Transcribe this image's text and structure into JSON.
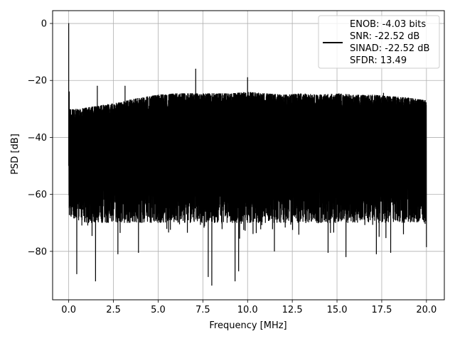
{
  "chart_data": {
    "type": "line",
    "title": "",
    "xlabel": "Frequency [MHz]",
    "ylabel": "PSD [dB]",
    "xlim": [
      -0.9,
      21.0
    ],
    "ylim": [
      -97,
      4.5
    ],
    "xticks": [
      0.0,
      2.5,
      5.0,
      7.5,
      10.0,
      12.5,
      15.0,
      17.5,
      20.0
    ],
    "xtick_labels": [
      "0.0",
      "2.5",
      "5.0",
      "7.5",
      "10.0",
      "12.5",
      "15.0",
      "17.5",
      "20.0"
    ],
    "yticks": [
      0,
      -20,
      -40,
      -60,
      -80
    ],
    "ytick_labels": [
      "0",
      "−20",
      "−40",
      "−60",
      "−80"
    ],
    "grid": true,
    "legend_position": "top-right",
    "series_color": "#000000",
    "legend": {
      "lines": [
        "ENOB: -4.03 bits",
        "SNR: -22.52 dB",
        "SINAD: -22.52 dB",
        "SFDR: 13.49"
      ]
    },
    "series": [
      {
        "upper_envelope": {
          "x": [
            0.0,
            0.1,
            0.5,
            1.0,
            1.5,
            2.0,
            2.5,
            3.0,
            3.5,
            4.0,
            5.0,
            6.0,
            7.0,
            8.0,
            9.0,
            10.0,
            11.0,
            12.0,
            13.0,
            14.0,
            15.0,
            16.0,
            17.0,
            18.0,
            19.0,
            20.0
          ],
          "y": [
            -30,
            -30,
            -30,
            -29.5,
            -29,
            -28.5,
            -28,
            -27.5,
            -26.5,
            -26,
            -25,
            -24.5,
            -24.5,
            -24.5,
            -24.5,
            -24,
            -24.5,
            -25,
            -24.5,
            -25,
            -24.5,
            -25,
            -25,
            -25.5,
            -26,
            -27
          ]
        },
        "lower_envelope": {
          "x": [
            0.0,
            0.5,
            1.0,
            2.0,
            3.0,
            4.0,
            5.0,
            6.0,
            7.0,
            8.0,
            9.0,
            10.0,
            11.0,
            12.0,
            13.0,
            14.0,
            15.0,
            16.0,
            17.0,
            18.0,
            19.0,
            20.0
          ],
          "y": [
            -68,
            -69,
            -70,
            -70,
            -70,
            -70,
            -70,
            -70,
            -70,
            -70,
            -70,
            -70,
            -70,
            -70,
            -70,
            -70,
            -70,
            -70,
            -70,
            -70,
            -70,
            -70
          ]
        },
        "peaks": [
          {
            "x": 0.0,
            "y": 0
          },
          {
            "x": 0.03,
            "y": -24
          },
          {
            "x": 1.6,
            "y": -22
          },
          {
            "x": 3.15,
            "y": -22
          },
          {
            "x": 7.1,
            "y": -16
          },
          {
            "x": 10.0,
            "y": -19
          },
          {
            "x": 17.6,
            "y": -24.5
          }
        ],
        "dips": [
          {
            "x": 0.0,
            "y": -50
          },
          {
            "x": 0.45,
            "y": -88
          },
          {
            "x": 1.5,
            "y": -90.5
          },
          {
            "x": 2.75,
            "y": -81
          },
          {
            "x": 3.9,
            "y": -80.5
          },
          {
            "x": 7.8,
            "y": -89
          },
          {
            "x": 8.0,
            "y": -92
          },
          {
            "x": 9.3,
            "y": -90.5
          },
          {
            "x": 9.5,
            "y": -87
          },
          {
            "x": 11.5,
            "y": -80
          },
          {
            "x": 14.5,
            "y": -80.5
          },
          {
            "x": 15.5,
            "y": -82
          },
          {
            "x": 17.2,
            "y": -81
          },
          {
            "x": 18.0,
            "y": -80.5
          },
          {
            "x": 20.0,
            "y": -78.5
          }
        ]
      }
    ]
  }
}
